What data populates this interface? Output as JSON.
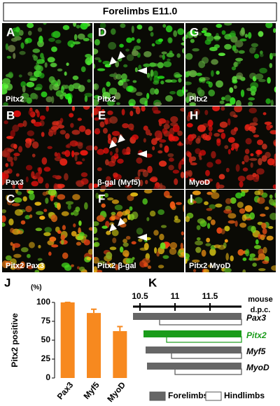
{
  "header": {
    "title": "Forelimbs E11.0"
  },
  "panels": [
    {
      "letter": "A",
      "label": "Pitx2",
      "stain": "green",
      "arrowheads": false
    },
    {
      "letter": "D",
      "label": "Pitx2",
      "stain": "green",
      "arrowheads": true
    },
    {
      "letter": "G",
      "label": "Pitx2",
      "stain": "green",
      "arrowheads": false
    },
    {
      "letter": "B",
      "label": "Pax3",
      "stain": "red",
      "arrowheads": false
    },
    {
      "letter": "E",
      "label": "β-gal (Myf5)",
      "stain": "red",
      "arrowheads": true
    },
    {
      "letter": "H",
      "label": "MyoD",
      "stain": "red",
      "arrowheads": false
    },
    {
      "letter": "C",
      "label": "Pitx2 Pax3",
      "stain": "merge",
      "arrowheads": false
    },
    {
      "letter": "F",
      "label": "Pitx2 β-gal",
      "stain": "merge",
      "arrowheads": true
    },
    {
      "letter": "I",
      "label": "Pitx2 MyoD",
      "stain": "merge",
      "arrowheads": false
    }
  ],
  "chart_data": [
    {
      "type": "bar",
      "panel": "J",
      "unit": "(%)",
      "ylabel": "Pitx2 positive",
      "categories": [
        "Pax3",
        "Myf5",
        "MyoD"
      ],
      "values": [
        100,
        86,
        62
      ],
      "errors": [
        0,
        5,
        6
      ],
      "color": "#f7891f",
      "ylim": [
        0,
        100
      ],
      "yticks": [
        0,
        25,
        50,
        75,
        100
      ]
    },
    {
      "type": "range",
      "panel": "K",
      "xlabel_lines": [
        "mouse",
        "d.p.c."
      ],
      "xlim": [
        10.4,
        11.95
      ],
      "xticks": [
        10.5,
        11,
        11.5
      ],
      "categories": [
        "Pax3",
        "Pitx2",
        "Myf5",
        "MyoD"
      ],
      "category_colors": [
        "#000000",
        "#1a9c1a",
        "#000000",
        "#000000"
      ],
      "series": [
        {
          "name": "Forelimbs",
          "color": "#666666",
          "start": [
            10.4,
            10.55,
            10.58,
            10.6
          ],
          "end": [
            11.95,
            11.95,
            11.95,
            11.95
          ]
        },
        {
          "name": "Hindlimbs",
          "color": "#ffffff",
          "start": [
            10.78,
            10.88,
            10.95,
            11.0
          ],
          "end": [
            11.95,
            11.95,
            11.95,
            11.95
          ]
        }
      ]
    }
  ]
}
